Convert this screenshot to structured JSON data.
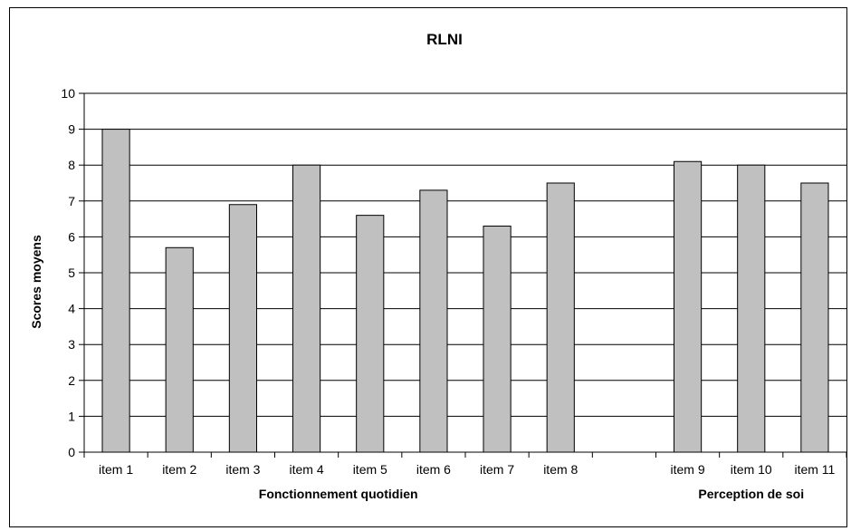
{
  "chart_data": {
    "type": "bar",
    "title": "RLNI",
    "ylabel": "Scores moyens",
    "ylim": [
      0,
      10
    ],
    "yticks": [
      0,
      1,
      2,
      3,
      4,
      5,
      6,
      7,
      8,
      9,
      10
    ],
    "grid": true,
    "legend": "none",
    "categories": [
      "item 1",
      "item 2",
      "item 3",
      "item 4",
      "item 5",
      "item 6",
      "item 7",
      "item 8",
      "",
      "item 9",
      "item 10",
      "item 11"
    ],
    "values": [
      9.0,
      5.7,
      6.9,
      8.0,
      6.6,
      7.3,
      6.3,
      7.5,
      null,
      8.1,
      8.0,
      7.5
    ],
    "groups": [
      {
        "label": "Fonctionnement quotidien",
        "from": 0,
        "to": 7
      },
      {
        "label": "Perception de soi",
        "from": 9,
        "to": 11
      }
    ],
    "bar_color": "#c0c0c0"
  }
}
